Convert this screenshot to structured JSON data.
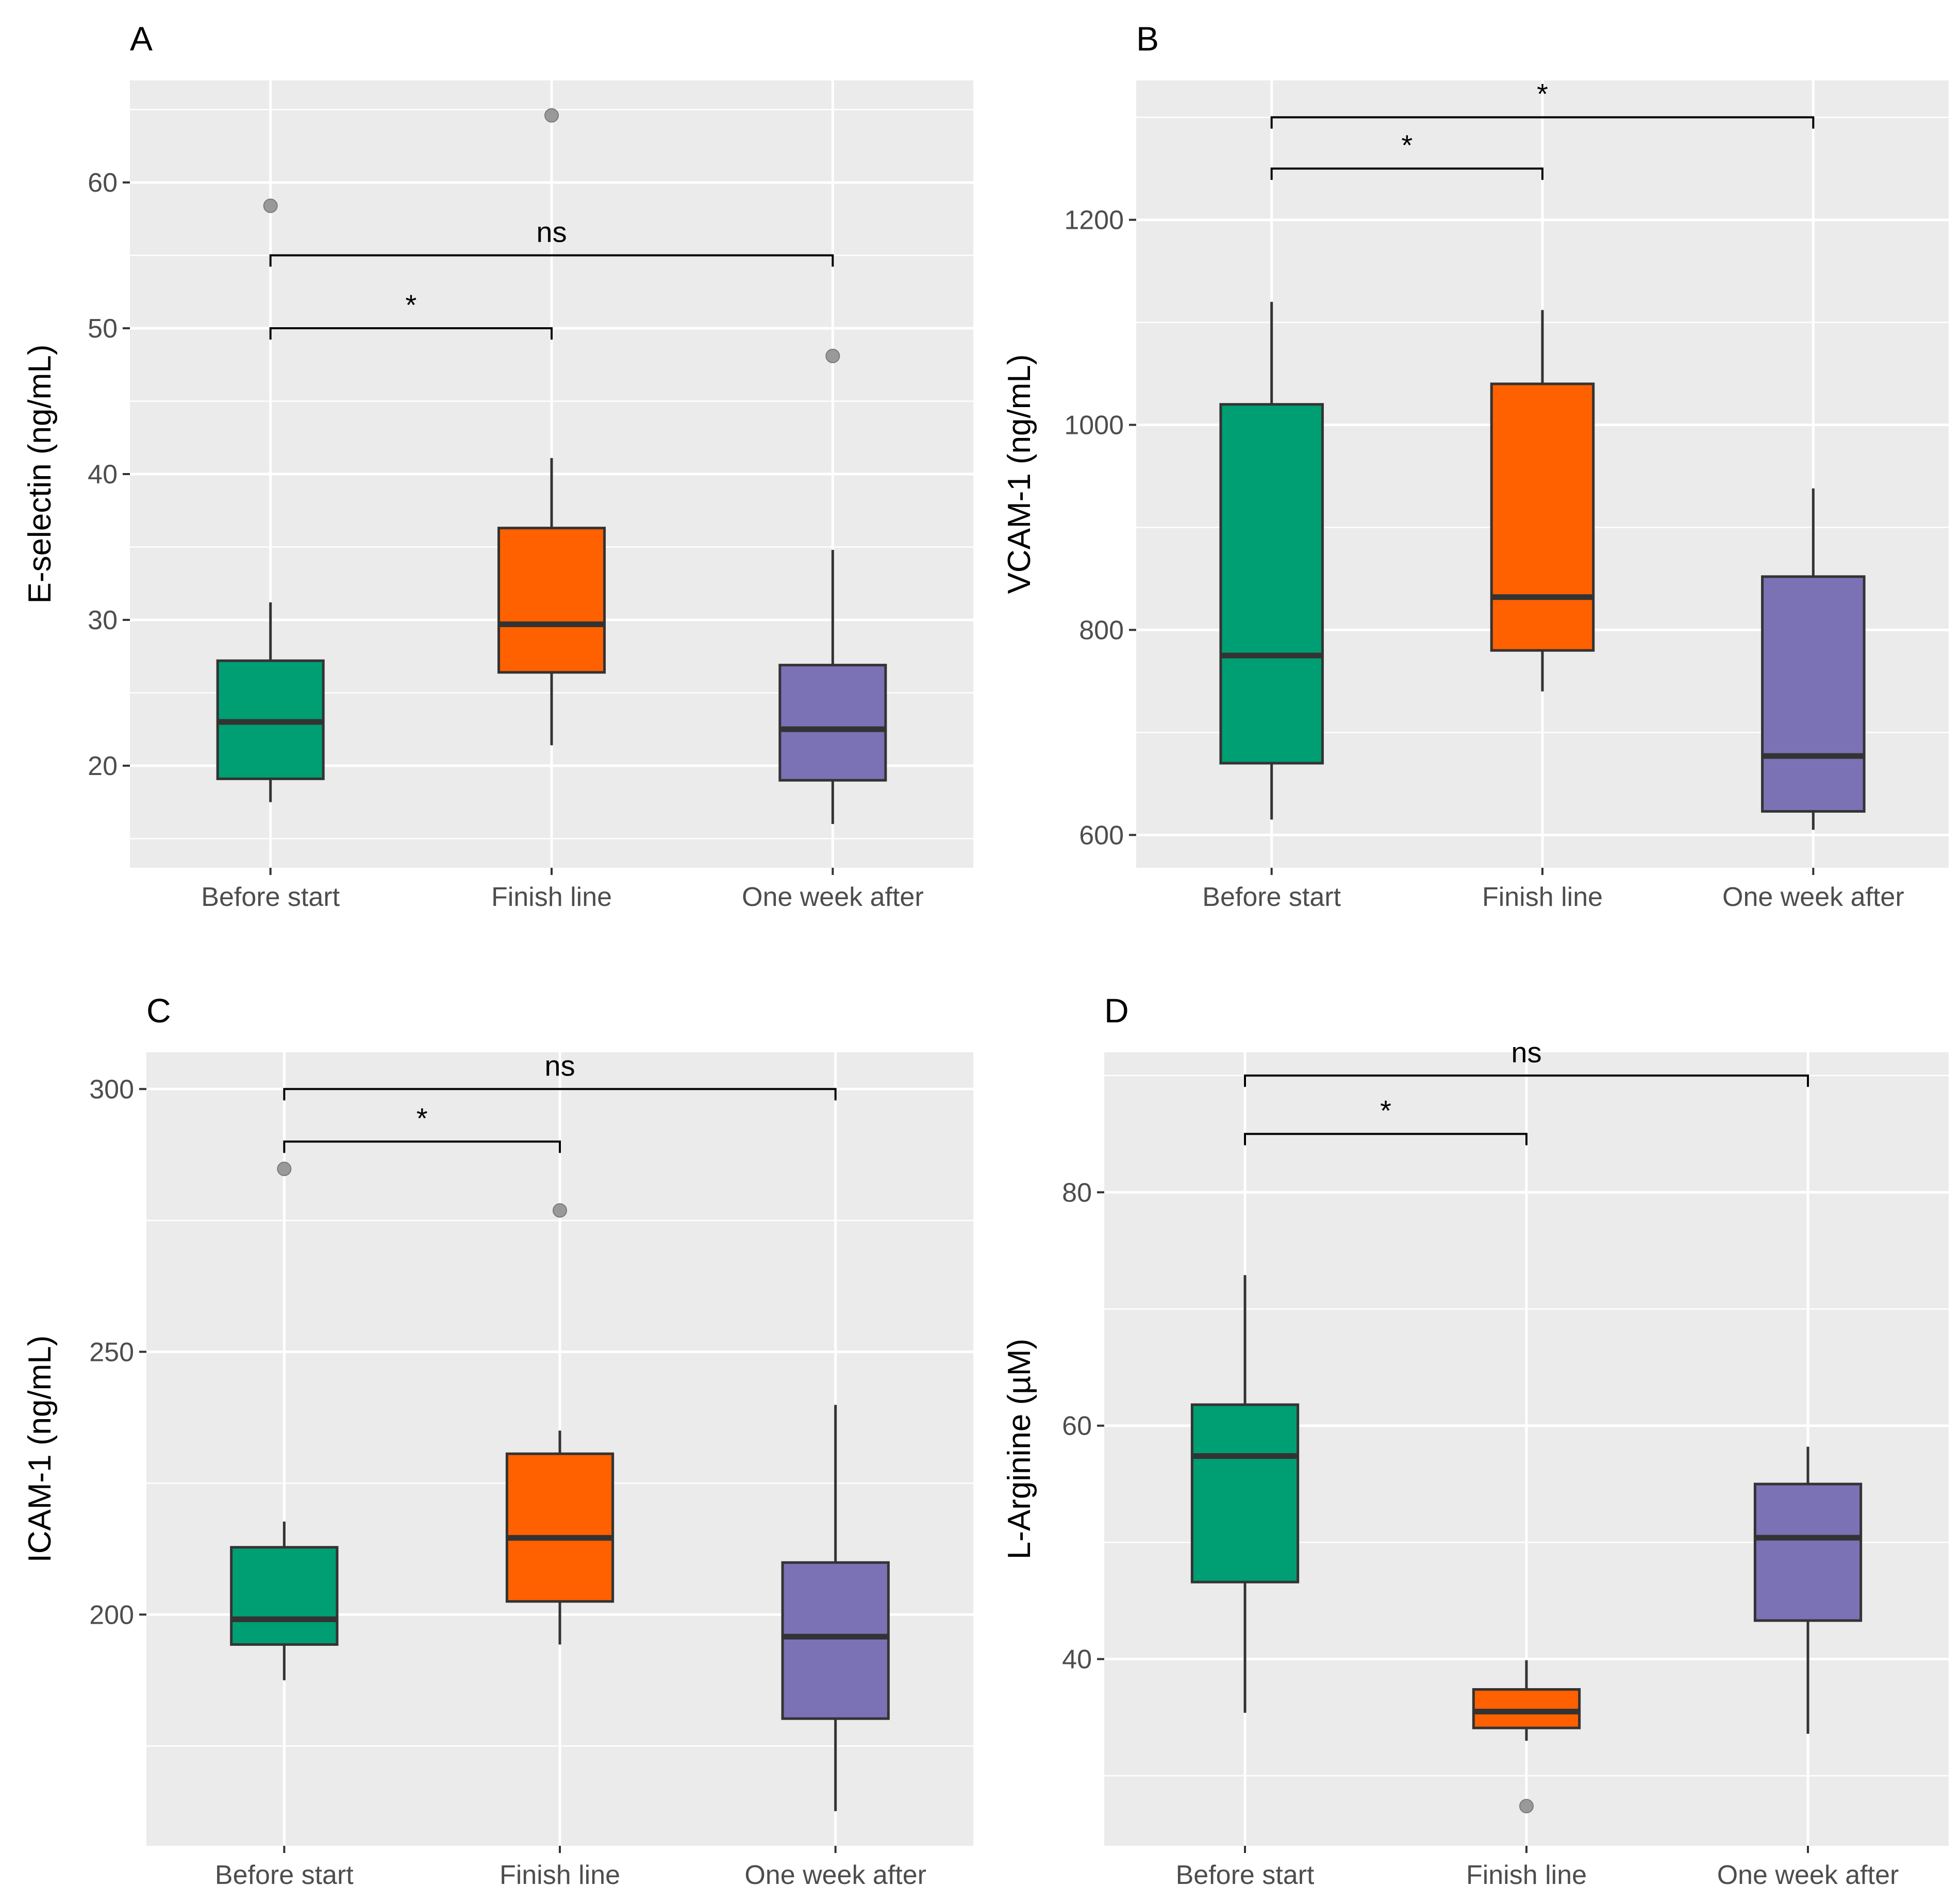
{
  "figure": {
    "colors": {
      "panel_bg": "#ebebeb",
      "grid": "#ffffff",
      "box_stroke": "#333333",
      "outlier": "#999999",
      "groups": [
        "#009e73",
        "#ff6000",
        "#7b72b6"
      ]
    }
  },
  "chart_data": [
    {
      "panel": "A",
      "type": "box",
      "title": "",
      "xlabel": "",
      "ylabel": "E-selectin (ng/mL)",
      "categories": [
        "Before start",
        "Finish line",
        "One week after"
      ],
      "ylim": [
        13,
        67
      ],
      "yticks": [
        20,
        30,
        40,
        50,
        60
      ],
      "ytick_labels": [
        "20",
        "30",
        "40",
        "50",
        "60"
      ],
      "grid": true,
      "boxes": [
        {
          "category": "Before start",
          "min": 17.5,
          "q1": 19.1,
          "median": 23.0,
          "q3": 27.2,
          "max": 31.2,
          "outliers": [
            58.4
          ]
        },
        {
          "category": "Finish line",
          "min": 21.4,
          "q1": 26.4,
          "median": 29.7,
          "q3": 36.3,
          "max": 41.1,
          "outliers": [
            64.6
          ]
        },
        {
          "category": "One week after",
          "min": 16.0,
          "q1": 19.0,
          "median": 22.5,
          "q3": 26.9,
          "max": 34.8,
          "outliers": [
            48.1
          ]
        }
      ],
      "comparisons": [
        {
          "from": "Before start",
          "to": "Finish line",
          "y": 50.0,
          "label": "*"
        },
        {
          "from": "Before start",
          "to": "One week after",
          "y": 55.0,
          "label": "ns"
        }
      ]
    },
    {
      "panel": "B",
      "type": "box",
      "title": "",
      "xlabel": "",
      "ylabel": "VCAM-1 (ng/mL)",
      "categories": [
        "Before start",
        "Finish line",
        "One week after"
      ],
      "ylim": [
        568,
        1336
      ],
      "yticks": [
        600,
        800,
        1000,
        1200
      ],
      "ytick_labels": [
        "600",
        "800",
        "1000",
        "1200"
      ],
      "grid": true,
      "boxes": [
        {
          "category": "Before start",
          "min": 615,
          "q1": 670,
          "median": 775,
          "q3": 1020,
          "max": 1120,
          "outliers": []
        },
        {
          "category": "Finish line",
          "min": 740,
          "q1": 780,
          "median": 832,
          "q3": 1040,
          "max": 1112,
          "outliers": []
        },
        {
          "category": "One week after",
          "min": 605,
          "q1": 623,
          "median": 677,
          "q3": 852,
          "max": 938,
          "outliers": []
        }
      ],
      "comparisons": [
        {
          "from": "Before start",
          "to": "Finish line",
          "y": 1250,
          "label": "*"
        },
        {
          "from": "Before start",
          "to": "One week after",
          "y": 1300,
          "label": "*"
        }
      ]
    },
    {
      "panel": "C",
      "type": "box",
      "title": "",
      "xlabel": "",
      "ylabel": "ICAM-1 (ng/mL)",
      "categories": [
        "Before start",
        "Finish line",
        "One week after"
      ],
      "ylim": [
        156,
        307
      ],
      "yticks": [
        200,
        250,
        300
      ],
      "ytick_labels": [
        "200",
        "250",
        "300"
      ],
      "grid": true,
      "boxes": [
        {
          "category": "Before start",
          "min": 187.5,
          "q1": 194.3,
          "median": 199.1,
          "q3": 212.8,
          "max": 217.7,
          "outliers": [
            284.8
          ]
        },
        {
          "category": "Finish line",
          "min": 194.3,
          "q1": 202.5,
          "median": 214.6,
          "q3": 230.6,
          "max": 235.0,
          "outliers": [
            276.9
          ]
        },
        {
          "category": "One week after",
          "min": 162.6,
          "q1": 180.2,
          "median": 195.8,
          "q3": 209.9,
          "max": 239.9,
          "outliers": []
        }
      ],
      "comparisons": [
        {
          "from": "Before start",
          "to": "Finish line",
          "y": 290.0,
          "label": "*"
        },
        {
          "from": "Before start",
          "to": "One week after",
          "y": 300.0,
          "label": "ns"
        }
      ]
    },
    {
      "panel": "D",
      "type": "box",
      "title": "",
      "xlabel": "",
      "ylabel": "L-Arginine (µM)",
      "categories": [
        "Before start",
        "Finish line",
        "One week after"
      ],
      "ylim": [
        24,
        92
      ],
      "yticks": [
        40,
        60,
        80
      ],
      "ytick_labels": [
        "40",
        "60",
        "80"
      ],
      "grid": true,
      "boxes": [
        {
          "category": "Before start",
          "min": 35.4,
          "q1": 46.6,
          "median": 57.4,
          "q3": 61.8,
          "max": 72.9,
          "outliers": []
        },
        {
          "category": "Finish line",
          "min": 33.0,
          "q1": 34.1,
          "median": 35.5,
          "q3": 37.4,
          "max": 39.9,
          "outliers": [
            27.4
          ]
        },
        {
          "category": "One week after",
          "min": 33.6,
          "q1": 43.3,
          "median": 50.4,
          "q3": 55.0,
          "max": 58.2,
          "outliers": []
        }
      ],
      "comparisons": [
        {
          "from": "Before start",
          "to": "Finish line",
          "y": 85.0,
          "label": "*"
        },
        {
          "from": "Before start",
          "to": "One week after",
          "y": 90.0,
          "label": "ns"
        }
      ]
    }
  ]
}
